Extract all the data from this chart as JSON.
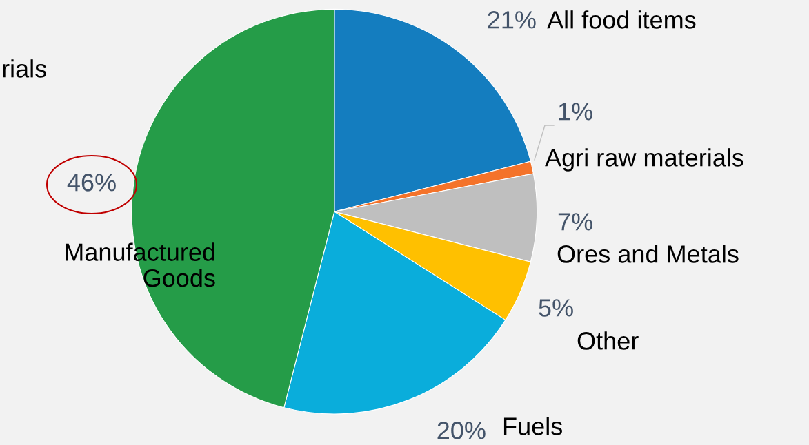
{
  "chart_data": {
    "type": "pie",
    "categories": [
      "All food items",
      "Agri raw materials",
      "Ores and Metals",
      "Other",
      "Fuels",
      "Manufactured\nGoods"
    ],
    "values": [
      21,
      1,
      7,
      5,
      20,
      46
    ],
    "value_labels": [
      "21%",
      "1%",
      "7%",
      "5%",
      "20%",
      "46%"
    ],
    "colors": [
      "#147dbf",
      "#f4732a",
      "#bfbfbf",
      "#ffc000",
      "#0aaddb",
      "#259c48"
    ],
    "annotations": [
      "rials"
    ]
  }
}
